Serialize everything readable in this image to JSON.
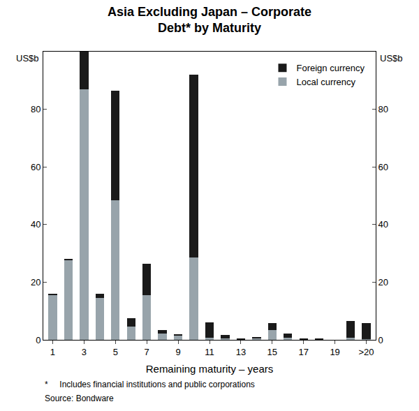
{
  "chart_data": {
    "type": "bar",
    "stacked": true,
    "title": [
      "Asia Excluding Japan – Corporate",
      "Debt* by Maturity"
    ],
    "x_label": "Remaining maturity – years",
    "y_label": "US$b",
    "y2_label": "US$b",
    "footnotes": [
      "*     Includes financial institutions and public corporations",
      "Source: Bondware"
    ],
    "categories": [
      "1",
      null,
      "3",
      null,
      "5",
      null,
      "7",
      null,
      "9",
      null,
      "11",
      null,
      "13",
      null,
      "15",
      null,
      "17",
      null,
      "19",
      null,
      ">20"
    ],
    "series": [
      {
        "name": "Local currency",
        "color": "#98a4ab",
        "values": [
          15.5,
          27.5,
          87,
          14.5,
          48.5,
          4.5,
          15.5,
          2.3,
          1.5,
          28.5,
          0.8,
          0.5,
          0,
          0.5,
          3.5,
          0.8,
          0.1,
          0.1,
          0,
          0.7,
          0.2
        ]
      },
      {
        "name": "Foreign currency",
        "color": "#1a1a1a",
        "values": [
          0.3,
          0.7,
          13,
          1.5,
          38,
          3,
          11,
          1,
          0.5,
          63.5,
          5.2,
          1.3,
          0.3,
          0.5,
          2.3,
          1.3,
          0.3,
          0.3,
          0,
          5.8,
          5.6
        ]
      }
    ],
    "ylim": [
      0,
      100
    ],
    "yticks": [
      0,
      20,
      40,
      60,
      80
    ],
    "y2lim": [
      0,
      100
    ],
    "y2ticks": [
      0,
      20,
      40,
      60,
      80
    ],
    "grid": false,
    "legend": "top right"
  }
}
